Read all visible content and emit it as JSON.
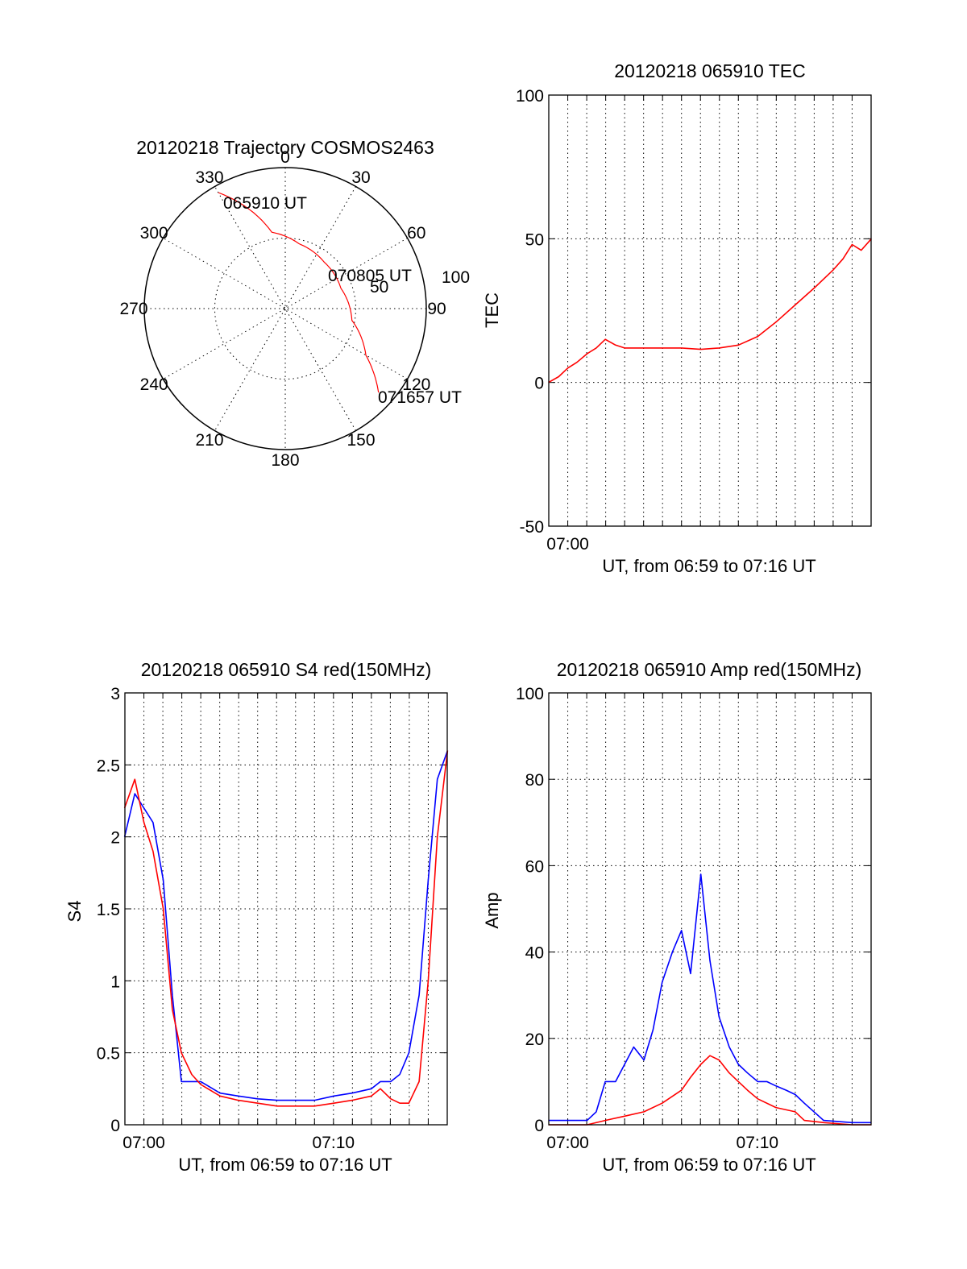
{
  "chart_data": [
    {
      "type": "polar",
      "title": "20120218 Trajectory COSMOS2463",
      "angle_ticks": [
        "0",
        "30",
        "60",
        "90",
        "120",
        "150",
        "180",
        "210",
        "240",
        "270",
        "300",
        "330"
      ],
      "radial_ticks": [
        "50",
        "100"
      ],
      "radial_range": [
        0,
        100
      ],
      "annotations": [
        "065910 UT",
        "070805 UT",
        "071657 UT"
      ],
      "series": [
        {
          "color": "#ff0000",
          "points": [
            {
              "azimuth": 330,
              "r": 95
            },
            {
              "azimuth": 350,
              "r": 55
            },
            {
              "azimuth": 12,
              "r": 47
            },
            {
              "azimuth": 40,
              "r": 43
            },
            {
              "azimuth": 70,
              "r": 42
            },
            {
              "azimuth": 100,
              "r": 48
            },
            {
              "azimuth": 120,
              "r": 66
            },
            {
              "azimuth": 132,
              "r": 89
            }
          ]
        }
      ]
    },
    {
      "type": "line",
      "title": "20120218 065910 TEC",
      "xlabel": "UT, from 06:59 to 07:16 UT",
      "ylabel": "TEC",
      "xlim": [
        6.9833,
        7.2667
      ],
      "ylim": [
        -50,
        100
      ],
      "x_ticks": [
        "07:00"
      ],
      "y_ticks": [
        "-50",
        "0",
        "50",
        "100"
      ],
      "grid": true,
      "series": [
        {
          "color": "#ff0000",
          "x": [
            6.983,
            6.992,
            7.0,
            7.008,
            7.017,
            7.025,
            7.033,
            7.042,
            7.05,
            7.067,
            7.083,
            7.1,
            7.117,
            7.133,
            7.15,
            7.167,
            7.183,
            7.2,
            7.217,
            7.233,
            7.242,
            7.25,
            7.258,
            7.267
          ],
          "y": [
            0,
            2,
            5,
            7,
            10,
            12,
            15,
            13,
            12,
            12,
            12,
            12,
            11.5,
            12,
            13,
            16,
            21,
            27,
            33,
            39,
            43,
            48,
            46,
            50
          ]
        }
      ]
    },
    {
      "type": "line",
      "title": "20120218 065910 S4 red(150MHz)",
      "xlabel": "UT, from 06:59 to 07:16 UT",
      "ylabel": "S4",
      "xlim": [
        6.9833,
        7.2667
      ],
      "ylim": [
        0,
        3
      ],
      "x_ticks": [
        "07:00",
        "07:10"
      ],
      "y_ticks": [
        "0",
        "0.5",
        "1",
        "1.5",
        "2",
        "2.5",
        "3"
      ],
      "grid": true,
      "series": [
        {
          "color": "#0000ff",
          "x": [
            6.983,
            6.992,
            7.0,
            7.008,
            7.017,
            7.025,
            7.033,
            7.05,
            7.067,
            7.083,
            7.1,
            7.117,
            7.133,
            7.15,
            7.167,
            7.183,
            7.2,
            7.208,
            7.217,
            7.225,
            7.233,
            7.242,
            7.25,
            7.258,
            7.267
          ],
          "y": [
            2.0,
            2.3,
            2.2,
            2.1,
            1.7,
            0.9,
            0.3,
            0.3,
            0.22,
            0.2,
            0.18,
            0.17,
            0.17,
            0.17,
            0.2,
            0.22,
            0.25,
            0.3,
            0.3,
            0.35,
            0.5,
            0.9,
            1.7,
            2.4,
            2.6
          ]
        },
        {
          "color": "#ff0000",
          "x": [
            6.983,
            6.992,
            7.0,
            7.008,
            7.017,
            7.025,
            7.033,
            7.042,
            7.05,
            7.067,
            7.083,
            7.1,
            7.117,
            7.133,
            7.15,
            7.167,
            7.183,
            7.2,
            7.208,
            7.217,
            7.225,
            7.233,
            7.242,
            7.25,
            7.258,
            7.267
          ],
          "y": [
            2.2,
            2.4,
            2.1,
            1.9,
            1.5,
            0.8,
            0.5,
            0.35,
            0.28,
            0.2,
            0.17,
            0.15,
            0.13,
            0.13,
            0.13,
            0.15,
            0.17,
            0.2,
            0.25,
            0.18,
            0.15,
            0.15,
            0.3,
            1.0,
            2.0,
            2.6
          ]
        }
      ]
    },
    {
      "type": "line",
      "title": "20120218 065910 Amp red(150MHz)",
      "xlabel": "UT, from 06:59 to 07:16 UT",
      "ylabel": "Amp",
      "xlim": [
        6.9833,
        7.2667
      ],
      "ylim": [
        0,
        100
      ],
      "x_ticks": [
        "07:00",
        "07:10"
      ],
      "y_ticks": [
        "0",
        "20",
        "40",
        "60",
        "80",
        "100"
      ],
      "grid": true,
      "series": [
        {
          "color": "#0000ff",
          "x": [
            6.983,
            7.0,
            7.017,
            7.025,
            7.033,
            7.042,
            7.05,
            7.058,
            7.067,
            7.075,
            7.083,
            7.092,
            7.1,
            7.108,
            7.117,
            7.125,
            7.133,
            7.142,
            7.15,
            7.158,
            7.167,
            7.175,
            7.183,
            7.192,
            7.2,
            7.208,
            7.225,
            7.25,
            7.267
          ],
          "y": [
            1,
            1,
            1,
            3,
            10,
            10,
            14,
            18,
            15,
            22,
            33,
            40,
            45,
            35,
            58,
            38,
            25,
            18,
            14,
            12,
            10,
            10,
            9,
            8,
            7,
            5,
            1,
            0.5,
            0.5
          ]
        },
        {
          "color": "#ff0000",
          "x": [
            6.983,
            7.0,
            7.017,
            7.033,
            7.05,
            7.067,
            7.083,
            7.1,
            7.108,
            7.117,
            7.125,
            7.133,
            7.142,
            7.15,
            7.158,
            7.167,
            7.183,
            7.2,
            7.208,
            7.225,
            7.25,
            7.267
          ],
          "y": [
            0,
            0,
            0,
            1,
            2,
            3,
            5,
            8,
            11,
            14,
            16,
            15,
            12,
            10,
            8,
            6,
            4,
            3,
            1,
            0.5,
            0,
            0
          ]
        }
      ]
    }
  ]
}
